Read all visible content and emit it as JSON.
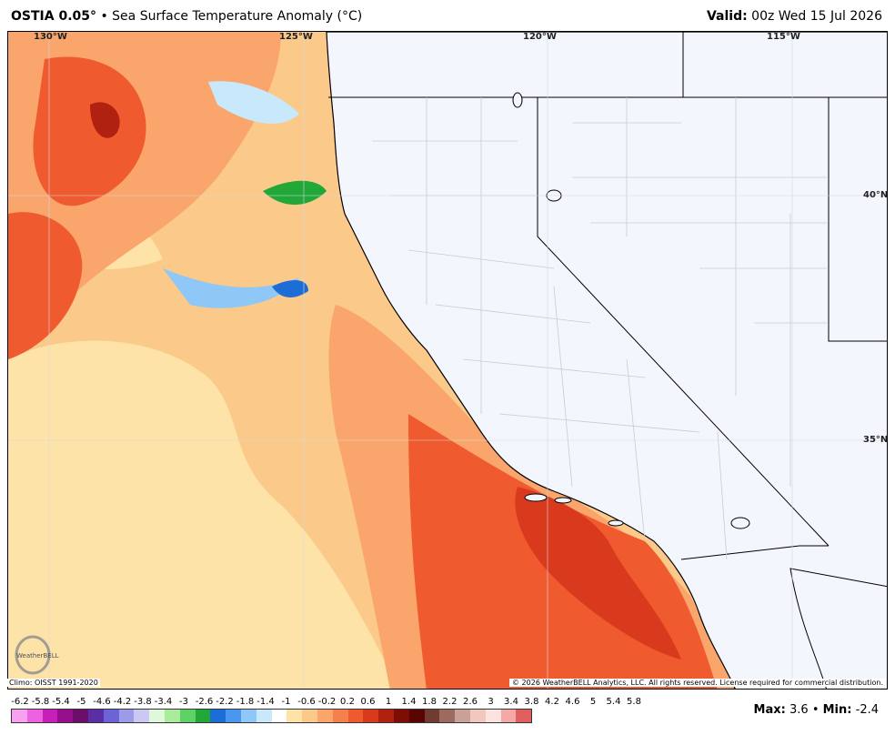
{
  "header": {
    "product": "OSTIA 0.05",
    "degree": "°",
    "bullet": "•",
    "title": "Sea Surface Temperature Anomaly (°C)",
    "valid_label": "Valid:",
    "valid_time": "00z Wed 15 Jul 2026"
  },
  "map": {
    "lon_labels": [
      "130°W",
      "125°W",
      "120°W",
      "115°W"
    ],
    "lat_labels": [
      "40°N",
      "35°N"
    ],
    "land_color": "#f3f6fd",
    "border_color": "#000000",
    "county_color": "#c8cbd3"
  },
  "footer": {
    "climo": "Climo: OISST 1991-2020",
    "copyright": "© 2026 WeatherBELL Analytics, LLC. All rights reserved. License required for commercial distribution.",
    "logo_text": "WeatherBELL"
  },
  "legend": {
    "ticks": [
      "-6.2",
      "-5.8",
      "-5.4",
      "-5",
      "-4.6",
      "-4.2",
      "-3.8",
      "-3.4",
      "-3",
      "-2.6",
      "-2.2",
      "-1.8",
      "-1.4",
      "-1",
      "-0.6",
      "-0.2",
      "0.2",
      "0.6",
      "1",
      "1.4",
      "1.8",
      "2.2",
      "2.6",
      "3",
      "3.4",
      "3.8",
      "4.2",
      "4.6",
      "5",
      "5.4",
      "5.8"
    ],
    "colors": [
      "#f7a1ef",
      "#ec62e0",
      "#c81fb9",
      "#960f8a",
      "#6e0e6b",
      "#5a2fa6",
      "#6c63d9",
      "#9c9be9",
      "#cbc9f3",
      "#dff7da",
      "#a8ec9c",
      "#5fd266",
      "#22a839",
      "#1d6dd6",
      "#4b97f0",
      "#8fc7f6",
      "#c8e9fb",
      "#ffffff",
      "#fde3a7",
      "#fbc98a",
      "#f9a56b",
      "#f5804d",
      "#ef5a2f",
      "#d93a1d",
      "#b0220f",
      "#7e0d05",
      "#5b0502",
      "#6f3b32",
      "#9c6b60",
      "#c9a199",
      "#f0c8bd",
      "#fbe4df",
      "#f5a9a6",
      "#e06061"
    ],
    "max_label": "Max:",
    "max_value": "3.6",
    "sep": "•",
    "min_label": "Min:",
    "min_value": "-2.4"
  }
}
